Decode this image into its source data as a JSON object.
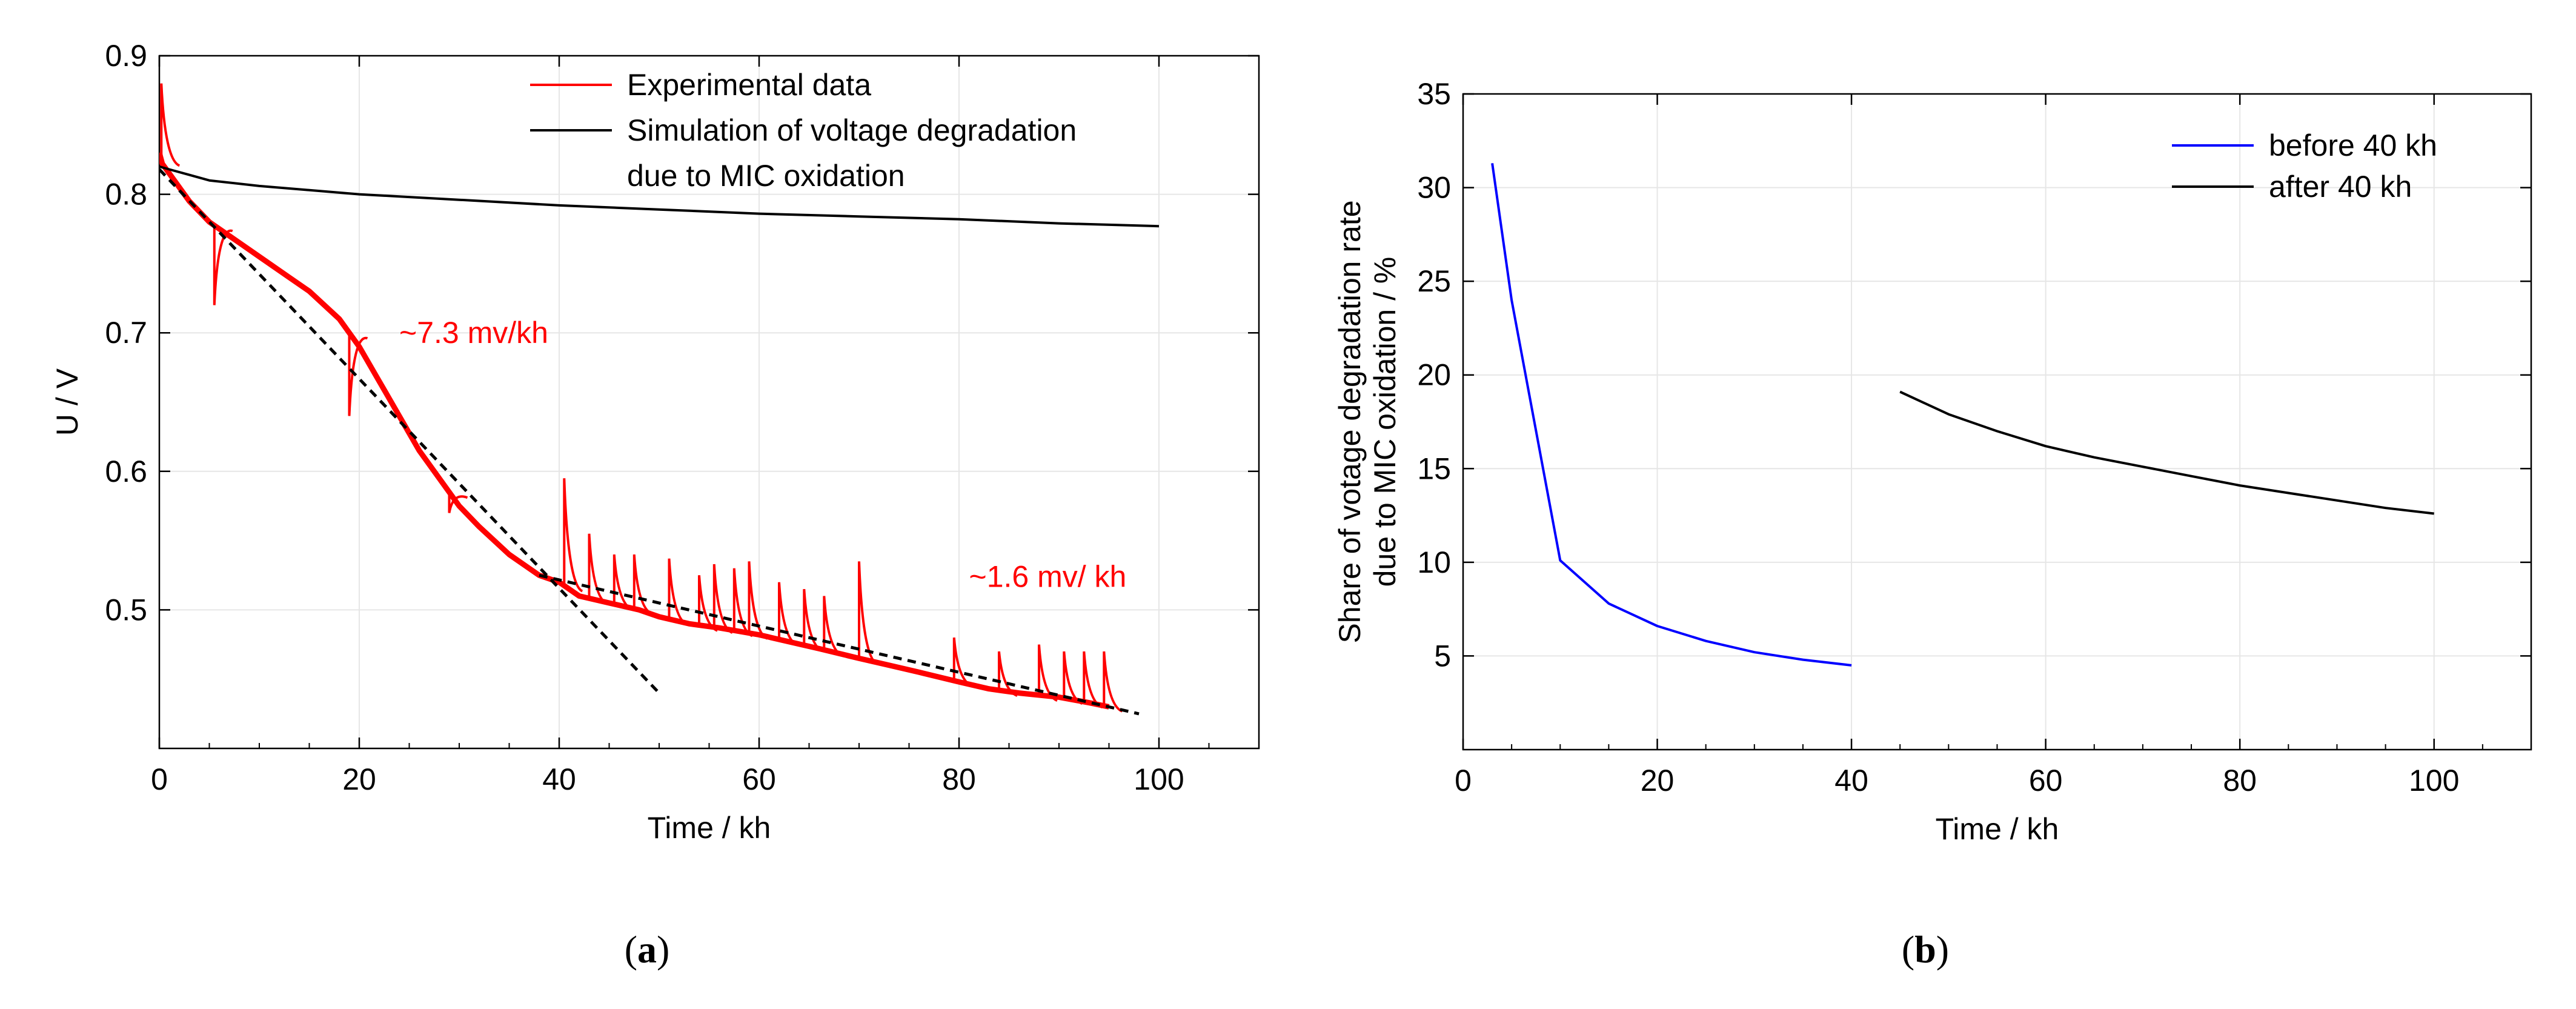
{
  "chart_data": [
    {
      "panel": "(a)",
      "type": "line",
      "xlabel": "Time / kh",
      "ylabel": "U / V",
      "xlim": [
        0,
        110
      ],
      "ylim": [
        0.4,
        0.9
      ],
      "xticks": [
        0,
        20,
        40,
        60,
        80,
        100
      ],
      "yticks": [
        0.5,
        0.6,
        0.7,
        0.8,
        0.9
      ],
      "ytick_labels": [
        "0.5",
        "0.6",
        "0.7",
        "0.8",
        "0.9"
      ],
      "grid": true,
      "legend": {
        "position": "top-right",
        "entries": [
          {
            "label": "Experimental data",
            "color": "#ff0000"
          },
          {
            "label": "Simulation of voltage degradation",
            "label2": "due to MIC oxidation",
            "color": "#000000"
          }
        ]
      },
      "annotations": [
        {
          "text": "~7.3 mv/kh",
          "x": 24,
          "y": 0.7,
          "color": "#ff0000"
        },
        {
          "text": "~1.6 mv/ kh",
          "x": 81,
          "y": 0.524,
          "color": "#ff0000"
        }
      ],
      "series": [
        {
          "name": "Experimental data",
          "color": "#ff0000",
          "x": [
            0,
            0.3,
            1,
            3,
            5,
            8,
            10,
            13,
            15,
            18,
            20,
            22,
            24,
            26,
            28,
            30,
            32,
            35,
            38,
            40,
            42,
            45,
            48,
            50,
            53,
            56,
            60,
            63,
            66,
            70,
            73,
            76,
            80,
            83,
            86,
            90,
            93,
            95
          ],
          "y": [
            0.83,
            0.822,
            0.815,
            0.795,
            0.78,
            0.765,
            0.755,
            0.74,
            0.73,
            0.71,
            0.69,
            0.665,
            0.64,
            0.615,
            0.595,
            0.575,
            0.56,
            0.54,
            0.525,
            0.52,
            0.51,
            0.505,
            0.5,
            0.495,
            0.49,
            0.487,
            0.482,
            0.477,
            0.472,
            0.465,
            0.46,
            0.455,
            0.448,
            0.443,
            0.44,
            0.437,
            0.433,
            0.43
          ],
          "spikes": [
            {
              "x": 0.2,
              "y": 0.88
            },
            {
              "x": 5.5,
              "y": 0.72
            },
            {
              "x": 19,
              "y": 0.64
            },
            {
              "x": 29,
              "y": 0.57
            },
            {
              "x": 40.5,
              "y": 0.595
            },
            {
              "x": 43,
              "y": 0.555
            },
            {
              "x": 45.5,
              "y": 0.54
            },
            {
              "x": 47.5,
              "y": 0.54
            },
            {
              "x": 51,
              "y": 0.537
            },
            {
              "x": 54,
              "y": 0.525
            },
            {
              "x": 55.5,
              "y": 0.533
            },
            {
              "x": 57.5,
              "y": 0.53
            },
            {
              "x": 59,
              "y": 0.535
            },
            {
              "x": 62,
              "y": 0.52
            },
            {
              "x": 64.5,
              "y": 0.515
            },
            {
              "x": 66.5,
              "y": 0.51
            },
            {
              "x": 70,
              "y": 0.535
            },
            {
              "x": 79.5,
              "y": 0.48
            },
            {
              "x": 84,
              "y": 0.47
            },
            {
              "x": 88,
              "y": 0.475
            },
            {
              "x": 90.5,
              "y": 0.47
            },
            {
              "x": 92.5,
              "y": 0.47
            },
            {
              "x": 94.5,
              "y": 0.47
            }
          ]
        },
        {
          "name": "Simulation of voltage degradation due to MIC oxidation",
          "color": "#000000",
          "x": [
            0,
            1,
            3,
            5,
            10,
            20,
            30,
            40,
            50,
            60,
            70,
            80,
            90,
            100
          ],
          "y": [
            0.82,
            0.818,
            0.814,
            0.81,
            0.806,
            0.8,
            0.796,
            0.792,
            0.789,
            0.786,
            0.784,
            0.782,
            0.779,
            0.777
          ]
        },
        {
          "name": "Fit ~7.3 mv/kh",
          "color": "#000000",
          "style": "dashed",
          "x": [
            0,
            50
          ],
          "y": [
            0.818,
            0.44
          ]
        },
        {
          "name": "Fit ~1.6 mv/ kh",
          "color": "#000000",
          "style": "dashed",
          "x": [
            38,
            98
          ],
          "y": [
            0.525,
            0.425
          ]
        }
      ],
      "caption": "(a)"
    },
    {
      "panel": "(b)",
      "type": "line",
      "xlabel": "Time / kh",
      "ylabel": "Share of votage degradation rate",
      "ylabel2": "due to MIC oxidation / %",
      "xlim": [
        0,
        110
      ],
      "ylim": [
        0,
        35
      ],
      "xticks": [
        0,
        20,
        40,
        60,
        80,
        100
      ],
      "yticks": [
        5,
        10,
        15,
        20,
        25,
        30,
        35
      ],
      "grid": true,
      "legend": {
        "position": "top-right",
        "entries": [
          {
            "label": "before 40 kh",
            "color": "#0000ff"
          },
          {
            "label": "after 40 kh",
            "color": "#000000"
          }
        ]
      },
      "series": [
        {
          "name": "before 40 kh",
          "color": "#0000ff",
          "x": [
            3,
            5,
            10,
            15,
            20,
            25,
            30,
            35,
            40
          ],
          "y": [
            31.3,
            24,
            10.1,
            7.8,
            6.6,
            5.8,
            5.2,
            4.8,
            4.5
          ]
        },
        {
          "name": "after 40 kh",
          "color": "#000000",
          "x": [
            45,
            50,
            55,
            60,
            65,
            70,
            75,
            80,
            85,
            90,
            95,
            100
          ],
          "y": [
            19.1,
            17.9,
            17,
            16.2,
            15.6,
            15.1,
            14.6,
            14.1,
            13.7,
            13.3,
            12.9,
            12.6
          ]
        }
      ],
      "caption": "(b)"
    }
  ]
}
